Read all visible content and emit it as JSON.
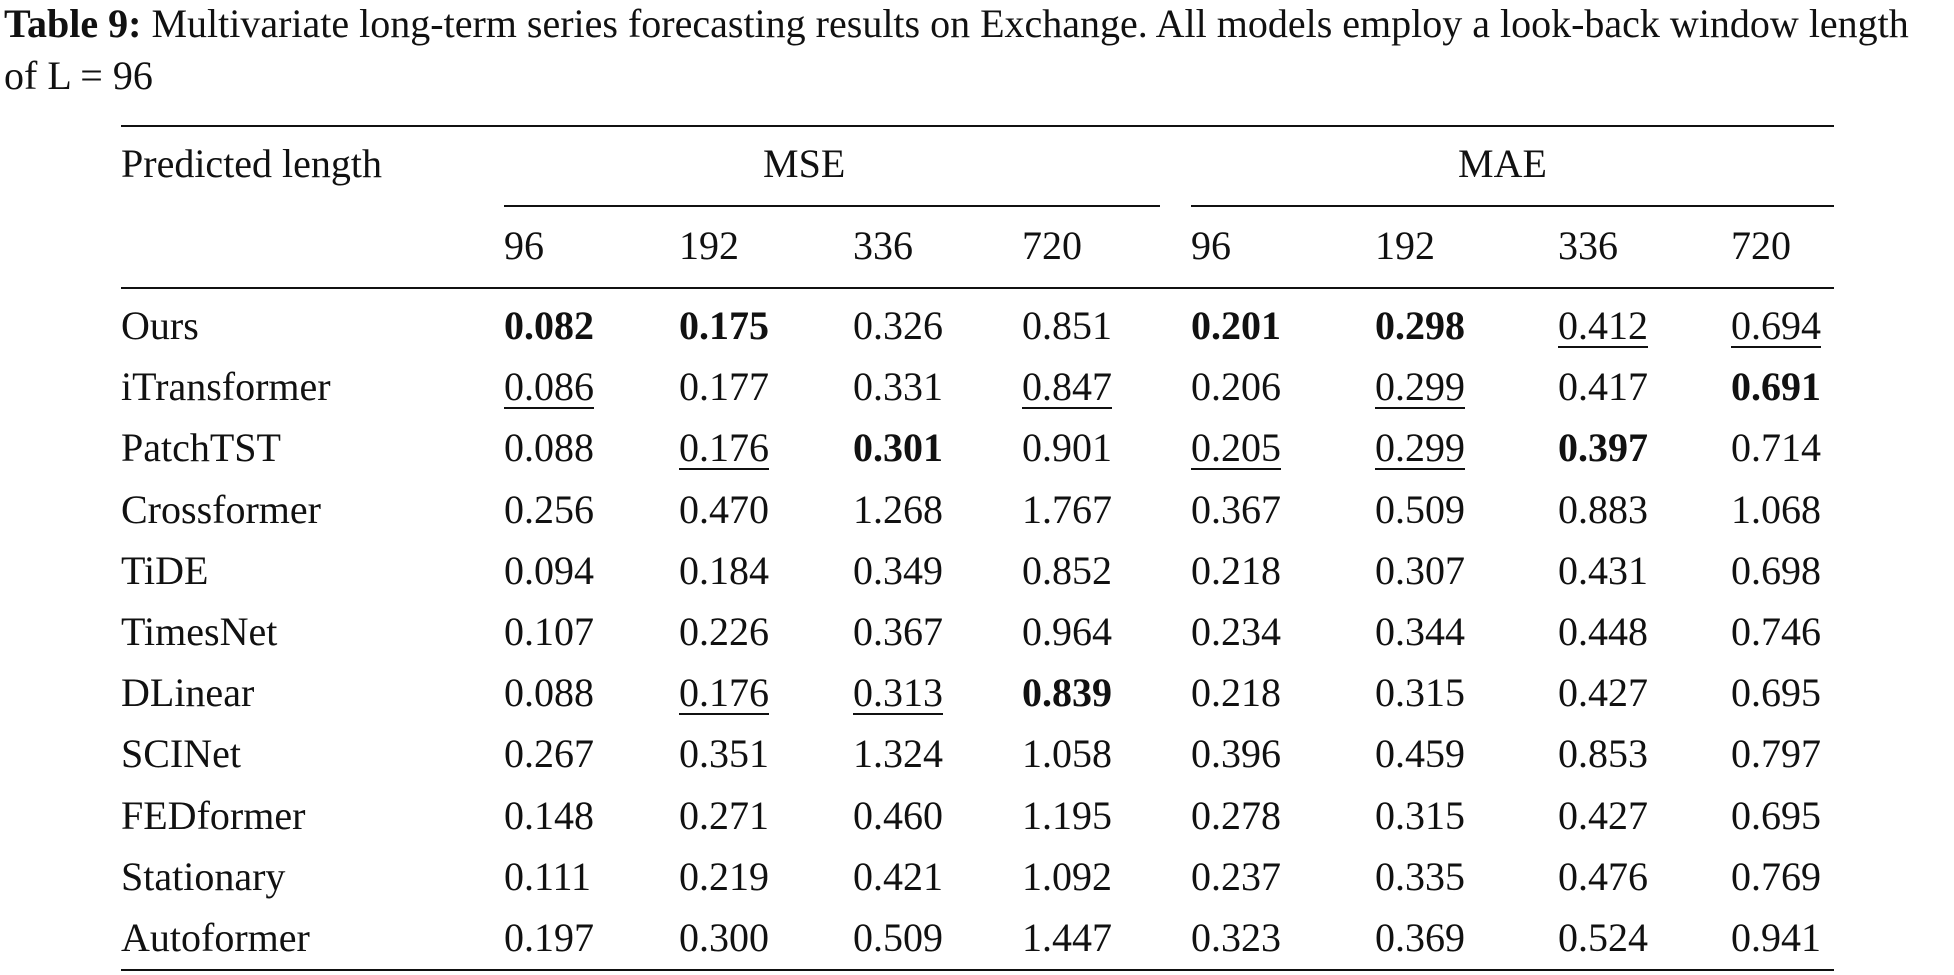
{
  "caption": {
    "label": "Table 9:",
    "text": " Multivariate long-term series forecasting results on Exchange. All models employ a look-back window length of L = 96"
  },
  "table": {
    "row_header": "Predicted length",
    "groups": [
      "MSE",
      "MAE"
    ],
    "lengths": [
      "96",
      "192",
      "336",
      "720",
      "96",
      "192",
      "336",
      "720"
    ],
    "rows": [
      {
        "model": "Ours",
        "values": [
          "0.082",
          "0.175",
          "0.326",
          "0.851",
          "0.201",
          "0.298",
          "0.412",
          "0.694"
        ],
        "style": [
          "bold",
          "bold",
          "",
          "",
          "bold",
          "bold",
          "under",
          "under"
        ]
      },
      {
        "model": "iTransformer",
        "values": [
          "0.086",
          "0.177",
          "0.331",
          "0.847",
          "0.206",
          "0.299",
          "0.417",
          "0.691"
        ],
        "style": [
          "under",
          "",
          "",
          "under",
          "",
          "under",
          "",
          "bold"
        ]
      },
      {
        "model": "PatchTST",
        "values": [
          "0.088",
          "0.176",
          "0.301",
          "0.901",
          "0.205",
          "0.299",
          "0.397",
          "0.714"
        ],
        "style": [
          "",
          "under",
          "bold",
          "",
          "under",
          "under",
          "bold",
          ""
        ]
      },
      {
        "model": "Crossformer",
        "values": [
          "0.256",
          "0.470",
          "1.268",
          "1.767",
          "0.367",
          "0.509",
          "0.883",
          "1.068"
        ],
        "style": [
          "",
          "",
          "",
          "",
          "",
          "",
          "",
          ""
        ]
      },
      {
        "model": "TiDE",
        "values": [
          "0.094",
          "0.184",
          "0.349",
          "0.852",
          "0.218",
          "0.307",
          "0.431",
          "0.698"
        ],
        "style": [
          "",
          "",
          "",
          "",
          "",
          "",
          "",
          ""
        ]
      },
      {
        "model": "TimesNet",
        "values": [
          "0.107",
          "0.226",
          "0.367",
          "0.964",
          "0.234",
          "0.344",
          "0.448",
          "0.746"
        ],
        "style": [
          "",
          "",
          "",
          "",
          "",
          "",
          "",
          ""
        ]
      },
      {
        "model": "DLinear",
        "values": [
          "0.088",
          "0.176",
          "0.313",
          "0.839",
          "0.218",
          "0.315",
          "0.427",
          "0.695"
        ],
        "style": [
          "",
          "under",
          "under",
          "bold",
          "",
          "",
          "",
          ""
        ]
      },
      {
        "model": "SCINet",
        "values": [
          "0.267",
          "0.351",
          "1.324",
          "1.058",
          "0.396",
          "0.459",
          "0.853",
          "0.797"
        ],
        "style": [
          "",
          "",
          "",
          "",
          "",
          "",
          "",
          ""
        ]
      },
      {
        "model": "FEDformer",
        "values": [
          "0.148",
          "0.271",
          "0.460",
          "1.195",
          "0.278",
          "0.315",
          "0.427",
          "0.695"
        ],
        "style": [
          "",
          "",
          "",
          "",
          "",
          "",
          "",
          ""
        ]
      },
      {
        "model": "Stationary",
        "values": [
          "0.111",
          "0.219",
          "0.421",
          "1.092",
          "0.237",
          "0.335",
          "0.476",
          "0.769"
        ],
        "style": [
          "",
          "",
          "",
          "",
          "",
          "",
          "",
          ""
        ]
      },
      {
        "model": "Autoformer",
        "values": [
          "0.197",
          "0.300",
          "0.509",
          "1.447",
          "0.323",
          "0.369",
          "0.524",
          "0.941"
        ],
        "style": [
          "",
          "",
          "",
          "",
          "",
          "",
          "",
          ""
        ]
      }
    ]
  }
}
